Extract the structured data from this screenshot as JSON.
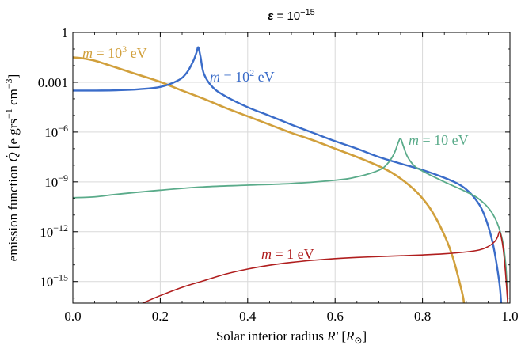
{
  "chart_data": {
    "type": "line",
    "title": "ε = 10⁻¹⁵",
    "xlabel": "Solar interior radius R' [R⊙]",
    "ylabel": "emission function Q̇ [e grs⁻¹ cm⁻³]",
    "xlim": [
      0.0,
      1.0
    ],
    "ylim_log10": [
      -16.3,
      0.0
    ],
    "yscale": "log",
    "grid": true,
    "x_tick_labels": [
      "0.0",
      "0.2",
      "0.4",
      "0.6",
      "0.8",
      "1.0"
    ],
    "y_tick_labels": [
      "1",
      "0.001",
      "10⁻⁶",
      "10⁻⁹",
      "10⁻¹²",
      "10⁻¹⁵"
    ],
    "series": [
      {
        "name": "m = 10³ eV",
        "color": "#d1a03c",
        "x": [
          0.0,
          0.02,
          0.05,
          0.08,
          0.1,
          0.15,
          0.2,
          0.25,
          0.3,
          0.35,
          0.4,
          0.45,
          0.5,
          0.55,
          0.6,
          0.65,
          0.7,
          0.73,
          0.76,
          0.79,
          0.82,
          0.85,
          0.87,
          0.89,
          0.895
        ],
        "log10_y": [
          -1.5,
          -1.55,
          -1.7,
          -1.95,
          -2.12,
          -2.55,
          -2.98,
          -3.5,
          -4.0,
          -4.55,
          -5.05,
          -5.55,
          -6.05,
          -6.5,
          -7.0,
          -7.5,
          -8.05,
          -8.45,
          -9.0,
          -9.7,
          -10.7,
          -12.2,
          -13.6,
          -15.6,
          -16.3
        ]
      },
      {
        "name": "m = 10² eV",
        "color": "#3a6cc9",
        "x": [
          0.0,
          0.05,
          0.1,
          0.15,
          0.2,
          0.24,
          0.26,
          0.275,
          0.283,
          0.287,
          0.292,
          0.3,
          0.32,
          0.35,
          0.4,
          0.45,
          0.5,
          0.55,
          0.6,
          0.65,
          0.7,
          0.75,
          0.8,
          0.85,
          0.88,
          0.9,
          0.92,
          0.94,
          0.96,
          0.975,
          0.98
        ],
        "log10_y": [
          -3.5,
          -3.5,
          -3.48,
          -3.42,
          -3.28,
          -2.9,
          -2.45,
          -1.75,
          -1.2,
          -0.9,
          -1.45,
          -2.5,
          -3.3,
          -3.85,
          -4.5,
          -5.02,
          -5.55,
          -6.05,
          -6.55,
          -7.0,
          -7.5,
          -7.9,
          -8.28,
          -8.75,
          -9.1,
          -9.45,
          -10.0,
          -10.9,
          -12.6,
          -14.9,
          -16.3
        ]
      },
      {
        "name": "m = 10 eV",
        "color": "#5aab8a",
        "x": [
          0.0,
          0.05,
          0.1,
          0.2,
          0.3,
          0.4,
          0.5,
          0.6,
          0.65,
          0.7,
          0.72,
          0.735,
          0.745,
          0.75,
          0.755,
          0.765,
          0.78,
          0.8,
          0.85,
          0.9,
          0.93,
          0.96,
          0.98,
          0.99,
          0.995
        ],
        "log10_y": [
          -9.95,
          -9.9,
          -9.75,
          -9.5,
          -9.3,
          -9.2,
          -9.1,
          -8.9,
          -8.7,
          -8.3,
          -7.9,
          -7.3,
          -6.6,
          -6.4,
          -6.75,
          -7.45,
          -8.0,
          -8.35,
          -9.0,
          -9.6,
          -10.05,
          -10.9,
          -12.2,
          -13.9,
          -16.3
        ]
      },
      {
        "name": "m = 1 eV",
        "color": "#b01e1e",
        "x": [
          0.16,
          0.2,
          0.25,
          0.3,
          0.35,
          0.4,
          0.45,
          0.5,
          0.55,
          0.6,
          0.65,
          0.7,
          0.75,
          0.8,
          0.85,
          0.9,
          0.93,
          0.95,
          0.965,
          0.972,
          0.976,
          0.98,
          0.985,
          0.99,
          0.995
        ],
        "log10_y": [
          -16.3,
          -15.85,
          -15.35,
          -14.95,
          -14.55,
          -14.25,
          -14.02,
          -13.85,
          -13.72,
          -13.62,
          -13.55,
          -13.5,
          -13.45,
          -13.4,
          -13.33,
          -13.22,
          -13.1,
          -12.9,
          -12.6,
          -12.3,
          -12.0,
          -12.3,
          -13.1,
          -14.5,
          -16.3
        ]
      }
    ],
    "annotations": [
      {
        "series": "m = 10³ eV",
        "prefix": "m",
        "text": " = 10",
        "sup": "3",
        "suffix": " eV",
        "color": "#d1a03c"
      },
      {
        "series": "m = 10² eV",
        "prefix": "m",
        "text": " = 10",
        "sup": "2",
        "suffix": " eV",
        "color": "#3a6cc9"
      },
      {
        "series": "m = 10 eV",
        "prefix": "m",
        "text": " = 10 eV",
        "sup": "",
        "suffix": "",
        "color": "#5aab8a"
      },
      {
        "series": "m = 1 eV",
        "prefix": "m",
        "text": " = 1 eV",
        "sup": "",
        "suffix": "",
        "color": "#b01e1e"
      }
    ]
  }
}
